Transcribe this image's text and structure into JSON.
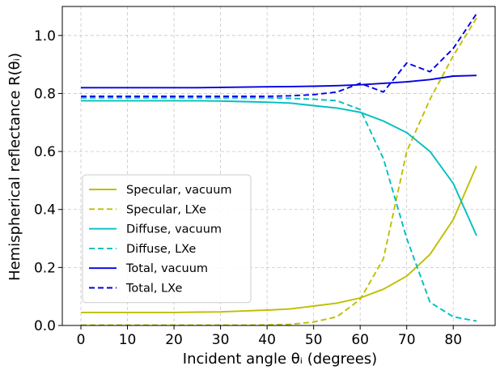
{
  "chart_data": {
    "type": "line",
    "xlabel": "Incident angle θᵢ (degrees)",
    "ylabel": "Hemispherical reflectance R(θᵢ)",
    "xlim": [
      -4,
      89
    ],
    "ylim": [
      0,
      1.1
    ],
    "xticks": [
      0,
      10,
      20,
      30,
      40,
      50,
      60,
      70,
      80
    ],
    "xtick_labels": [
      "0",
      "10",
      "20",
      "30",
      "40",
      "50",
      "60",
      "70",
      "80"
    ],
    "yticks": [
      0.0,
      0.2,
      0.4,
      0.6,
      0.8,
      1.0
    ],
    "ytick_labels": [
      "0.0",
      "0.2",
      "0.4",
      "0.6",
      "0.8",
      "1.0"
    ],
    "grid": true,
    "legend_position": "lower-left",
    "x": [
      0,
      5,
      10,
      15,
      20,
      25,
      30,
      35,
      40,
      45,
      50,
      55,
      60,
      65,
      70,
      75,
      80,
      85
    ],
    "series": [
      {
        "name": "Specular, vacuum",
        "color": "#bfbf00",
        "dash": "solid",
        "values": [
          0.045,
          0.045,
          0.045,
          0.045,
          0.045,
          0.046,
          0.047,
          0.05,
          0.053,
          0.057,
          0.067,
          0.077,
          0.095,
          0.125,
          0.17,
          0.245,
          0.365,
          0.55
        ]
      },
      {
        "name": "Specular, LXe",
        "color": "#bfbf00",
        "dash": "dashed",
        "values": [
          0.001,
          0.001,
          0.001,
          0.001,
          0.001,
          0.001,
          0.001,
          0.001,
          0.002,
          0.004,
          0.012,
          0.03,
          0.09,
          0.23,
          0.6,
          0.78,
          0.93,
          1.06
        ]
      },
      {
        "name": "Diffuse, vacuum",
        "color": "#00bfbf",
        "dash": "solid",
        "values": [
          0.775,
          0.775,
          0.775,
          0.775,
          0.775,
          0.775,
          0.774,
          0.772,
          0.77,
          0.767,
          0.758,
          0.75,
          0.735,
          0.705,
          0.665,
          0.6,
          0.49,
          0.31
        ]
      },
      {
        "name": "Diffuse, LXe",
        "color": "#00bfbf",
        "dash": "dashed",
        "values": [
          0.785,
          0.785,
          0.785,
          0.785,
          0.785,
          0.785,
          0.785,
          0.785,
          0.785,
          0.783,
          0.78,
          0.775,
          0.745,
          0.575,
          0.3,
          0.08,
          0.03,
          0.015
        ]
      },
      {
        "name": "Total, vacuum",
        "color": "#0000e6",
        "dash": "solid",
        "values": [
          0.82,
          0.82,
          0.82,
          0.82,
          0.82,
          0.82,
          0.821,
          0.822,
          0.823,
          0.824,
          0.825,
          0.827,
          0.83,
          0.835,
          0.84,
          0.848,
          0.86,
          0.862
        ]
      },
      {
        "name": "Total, LXe",
        "color": "#0000e6",
        "dash": "dashed",
        "values": [
          0.79,
          0.79,
          0.79,
          0.79,
          0.79,
          0.79,
          0.79,
          0.79,
          0.79,
          0.792,
          0.796,
          0.805,
          0.835,
          0.805,
          0.905,
          0.875,
          0.955,
          1.075
        ]
      }
    ]
  }
}
